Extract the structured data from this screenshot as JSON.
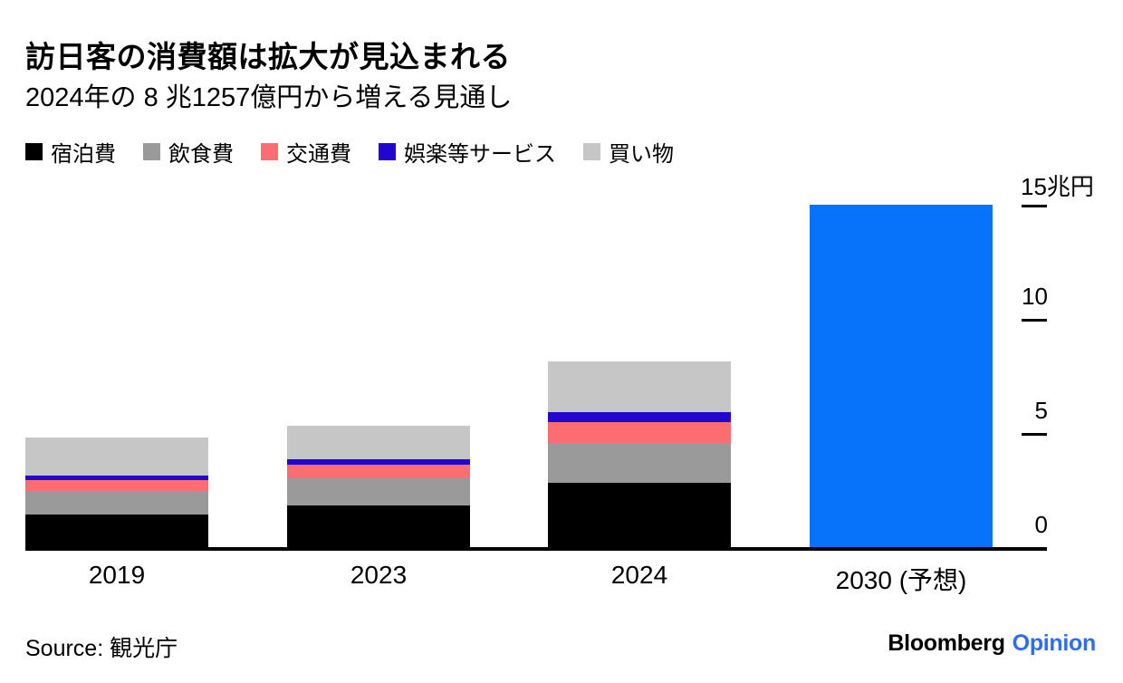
{
  "header": {
    "title": "訪日客の消費額は拡大が見込まれる",
    "subtitle": "2024年の 8 兆1257億円から増える見通し"
  },
  "legend": {
    "items": [
      {
        "key": "lodging",
        "label": "宿泊費",
        "color": "#000000"
      },
      {
        "key": "food",
        "label": "飲食費",
        "color": "#9a9a9a"
      },
      {
        "key": "transport",
        "label": "交通費",
        "color": "#fc6d71"
      },
      {
        "key": "entertainment",
        "label": "娯楽等サービス",
        "color": "#2305d2"
      },
      {
        "key": "shopping",
        "label": "買い物",
        "color": "#c6c6c6"
      }
    ]
  },
  "chart_data": {
    "type": "bar",
    "stacked": true,
    "title": "訪日客の消費額は拡大が見込まれる",
    "subtitle": "2024年の 8 兆1257億円から増える見通し",
    "unit": "兆円",
    "categories": [
      "2019",
      "2023",
      "2024",
      "2030 (予想)"
    ],
    "series": [
      {
        "key": "lodging",
        "name": "宿泊費",
        "color": "#000000",
        "values": [
          1.41,
          1.83,
          2.82,
          null
        ]
      },
      {
        "key": "food",
        "name": "飲食費",
        "color": "#9a9a9a",
        "values": [
          1.04,
          1.18,
          1.73,
          null
        ]
      },
      {
        "key": "transport",
        "name": "交通費",
        "color": "#fc6d71",
        "values": [
          0.5,
          0.61,
          0.93,
          null
        ]
      },
      {
        "key": "entertainment",
        "name": "娯楽等サービス",
        "color": "#2305d2",
        "values": [
          0.19,
          0.24,
          0.43,
          null
        ]
      },
      {
        "key": "shopping",
        "name": "買い物",
        "color": "#c6c6c6",
        "values": [
          1.67,
          1.46,
          2.22,
          null
        ]
      }
    ],
    "forecast_bar": {
      "category": "2030 (予想)",
      "total": 15,
      "color": "#0673fa"
    },
    "y_ticks": [
      {
        "label": "15兆円",
        "value": 15
      },
      {
        "label": "10",
        "value": 10
      },
      {
        "label": "5",
        "value": 5
      },
      {
        "label": "0",
        "value": 0
      }
    ],
    "ylim": [
      0,
      15
    ],
    "grid": false,
    "legend_position": "top-left",
    "axis_side": "right"
  },
  "footer": {
    "source": "Source: 観光庁",
    "brand": {
      "bloomberg": "Bloomberg",
      "opinion": "Opinion"
    },
    "brand_colors": {
      "bloomberg": "#000000",
      "opinion": "#2d6df6"
    }
  }
}
